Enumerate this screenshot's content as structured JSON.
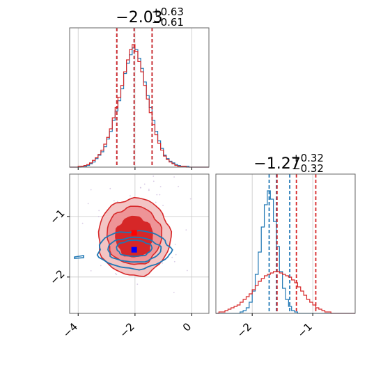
{
  "chart_data": [
    {
      "type": "histogram",
      "panel": "marginal-x",
      "title": {
        "main": "−2.03",
        "sup": "+0.63",
        "sub": "−0.61"
      },
      "xlim": [
        -4.3,
        0.6
      ],
      "x_ticks": [
        -4,
        -2,
        0
      ],
      "grid": true,
      "series": [
        {
          "color": "#1f77b4",
          "bin_start": -4.3,
          "bin_width": 0.1,
          "counts": [
            0,
            0,
            0,
            0,
            1,
            1,
            2,
            4,
            6,
            10,
            14,
            18,
            24,
            33,
            42,
            55,
            66,
            78,
            92,
            110,
            122,
            132,
            140,
            138,
            128,
            116,
            100,
            84,
            70,
            55,
            42,
            31,
            22,
            14,
            10,
            7,
            5,
            3,
            2,
            1,
            1,
            1,
            0,
            0,
            0,
            0,
            0,
            0,
            0
          ],
          "quantile_lines": [
            -2.64,
            -2.03,
            -1.4
          ]
        },
        {
          "color": "#d62728",
          "bin_start": -4.3,
          "bin_width": 0.1,
          "counts": [
            0,
            0,
            0,
            1,
            1,
            2,
            3,
            5,
            8,
            11,
            15,
            20,
            27,
            35,
            45,
            58,
            70,
            82,
            96,
            112,
            126,
            138,
            144,
            136,
            124,
            112,
            96,
            80,
            64,
            50,
            38,
            28,
            20,
            13,
            9,
            6,
            4,
            2,
            1,
            1,
            1,
            0,
            0,
            0,
            0,
            0,
            0,
            0,
            0
          ],
          "quantile_lines": [
            -2.64,
            -2.03,
            -1.4
          ]
        }
      ]
    },
    {
      "type": "contour",
      "panel": "joint",
      "xlim": [
        -4.3,
        0.6
      ],
      "ylim": [
        -2.6,
        -0.3
      ],
      "x_ticks": [
        -4,
        -2,
        0
      ],
      "y_ticks": [
        -1,
        -2
      ],
      "grid": true,
      "series": [
        {
          "color": "#d62728",
          "center": [
            -2.03,
            -1.27
          ],
          "spread": [
            0.62,
            0.32
          ],
          "filled": true,
          "marker": "square"
        },
        {
          "color": "#1f77b4",
          "center": [
            -2.03,
            -1.55
          ],
          "spread": [
            0.62,
            0.12
          ],
          "filled": false,
          "marker": "square"
        }
      ]
    },
    {
      "type": "histogram",
      "panel": "marginal-y",
      "title": {
        "main": "−1.27",
        "sup": "+0.32",
        "sub": "−0.32"
      },
      "xlim": [
        -2.6,
        -0.3
      ],
      "x_ticks": [
        -2,
        -1
      ],
      "grid": true,
      "series": [
        {
          "color": "#1f77b4",
          "bin_start": -2.6,
          "bin_width": 0.05,
          "counts": [
            0,
            0,
            0,
            0,
            0,
            0,
            0,
            0,
            1,
            2,
            4,
            8,
            16,
            28,
            44,
            62,
            78,
            88,
            82,
            66,
            48,
            30,
            18,
            10,
            5,
            2,
            1,
            0,
            0,
            0,
            0,
            0,
            0,
            0,
            0,
            0,
            0,
            0,
            0,
            0,
            0,
            0,
            0,
            0,
            0,
            0
          ],
          "quantile_lines": [
            -1.72,
            -1.6,
            -1.38
          ]
        },
        {
          "color": "#d62728",
          "bin_start": -2.6,
          "bin_width": 0.05,
          "counts": [
            0,
            1,
            1,
            2,
            3,
            4,
            5,
            6,
            8,
            10,
            12,
            14,
            17,
            20,
            23,
            25,
            27,
            28,
            29,
            30,
            30,
            29,
            28,
            27,
            26,
            24,
            22,
            19,
            16,
            13,
            10,
            8,
            6,
            4,
            3,
            2,
            1,
            1,
            0,
            0,
            0,
            0,
            0,
            0,
            0,
            0
          ],
          "quantile_lines": [
            -1.59,
            -1.27,
            -0.95
          ]
        }
      ]
    }
  ]
}
